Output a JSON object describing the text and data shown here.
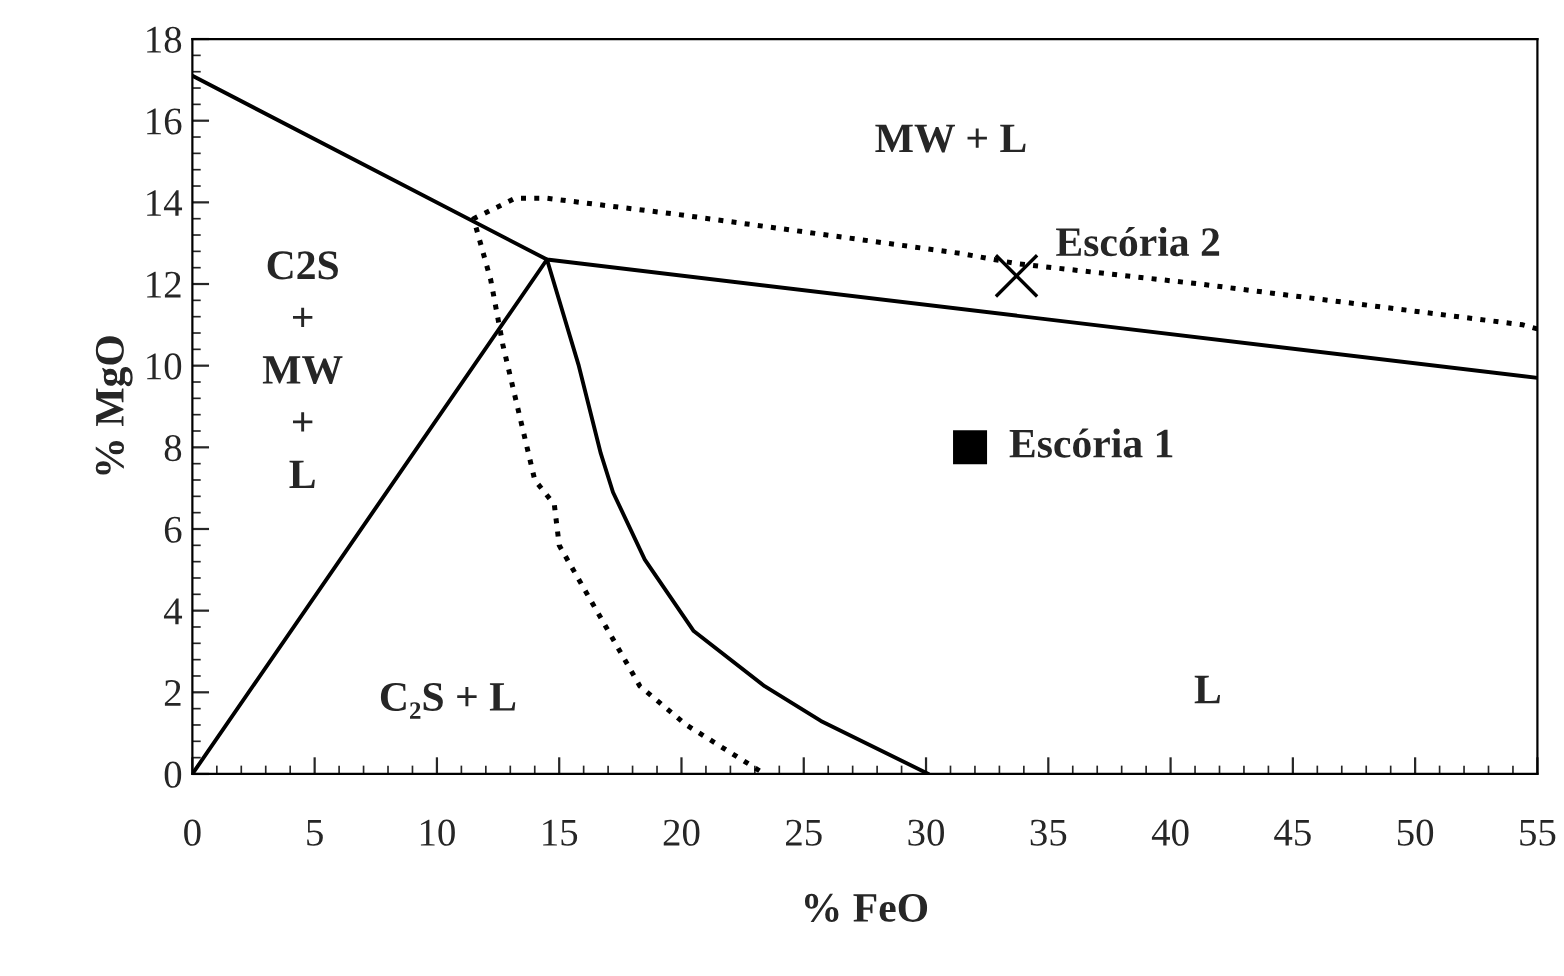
{
  "chart_data": {
    "type": "line",
    "xlabel": "% FeO",
    "ylabel": "% MgO",
    "xlim": [
      0,
      55
    ],
    "ylim": [
      0,
      18
    ],
    "xticks": [
      0,
      5,
      10,
      15,
      20,
      25,
      30,
      35,
      40,
      45,
      50,
      55
    ],
    "yticks": [
      0,
      2,
      4,
      6,
      8,
      10,
      12,
      14,
      16,
      18
    ],
    "grid": false,
    "legend": false,
    "series": [
      {
        "color": "#000000",
        "line_style": "solid",
        "marker": "none",
        "x": [
          0,
          14.5,
          55
        ],
        "values": [
          17.1,
          12.6,
          9.7
        ]
      },
      {
        "color": "#000000",
        "line_style": "solid",
        "marker": "none",
        "x": [
          0,
          14.5,
          15.8,
          16.7,
          17.2,
          18.5,
          20.5,
          23.4,
          25.7,
          30.1
        ],
        "values": [
          0,
          12.6,
          10.0,
          7.85,
          6.9,
          5.25,
          3.5,
          2.15,
          1.3,
          0
        ]
      },
      {
        "color": "#000000",
        "line_style": "dotted",
        "marker": "none",
        "x": [
          55,
          54.4,
          41.2,
          33.7,
          31.4,
          19.9,
          14.5,
          13.2,
          11.5,
          12.2,
          12.7,
          14.0,
          14.8,
          15.0,
          18.3,
          20.2,
          23.4
        ],
        "values": [
          10.9,
          11.0,
          12.0,
          12.5,
          12.75,
          13.7,
          14.1,
          14.1,
          13.6,
          12.1,
          10.5,
          7.2,
          6.6,
          5.6,
          2.15,
          1.2,
          0
        ]
      },
      {
        "type": "scatter",
        "name": "Escória 1",
        "color": "#000000",
        "marker": "square",
        "x": [
          31.8
        ],
        "values": [
          8.0
        ]
      },
      {
        "type": "scatter",
        "name": "Escória 2",
        "color": "#000000",
        "marker": "cross",
        "x": [
          33.7
        ],
        "values": [
          12.2
        ]
      }
    ],
    "annotations": [
      "MW + L",
      "C2S\n+\nMW\n+\nL",
      "C₂S + L",
      "L"
    ]
  }
}
